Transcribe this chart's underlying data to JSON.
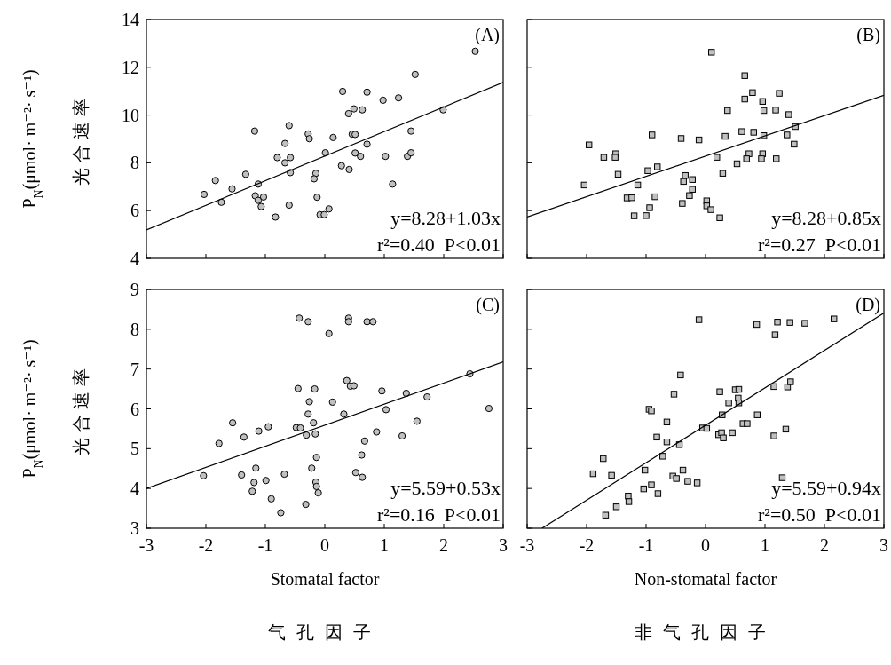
{
  "chart_data": [
    {
      "type": "scatter",
      "xlim": [
        -3,
        3
      ],
      "xticks": [
        -3,
        -2,
        -1,
        0,
        1,
        2,
        3
      ],
      "ylim": [
        4,
        14
      ],
      "yticks": [
        4,
        6,
        8,
        10,
        12,
        14
      ],
      "tick_labels": "y",
      "ylabel": "P$_{N}$(μmol· m⁻²· s⁻¹)\n光合速率",
      "annotations": [
        "(A)",
        "y=8.28+1.03x",
        "r²=0.40  P<0.01"
      ],
      "series": [
        {
          "type": "scatter",
          "marker": "circle",
          "color": "#c0c0c0",
          "x": [
            2.53,
            1.52,
            0.3,
            0.71,
            0.98,
            1.24,
            1.99,
            0.4,
            0.49,
            0.63,
            -1.18,
            -0.6,
            -0.28,
            -0.26,
            0.14,
            0.46,
            0.51,
            1.45,
            -0.67,
            0.71,
            0.01,
            -0.8,
            -0.67,
            -0.58,
            0.51,
            0.6,
            1.02,
            1.39,
            1.45,
            0.28,
            0.41,
            -0.58,
            -0.15,
            -0.18,
            -1.33,
            -1.84,
            -1.12,
            -1.56,
            -2.03,
            -1.74,
            -1.17,
            -1.03,
            -1.12,
            -1.07,
            -0.13,
            -0.6,
            1.14,
            -0.83,
            -0.08,
            -0.01,
            0.07
          ],
          "values": [
            12.67,
            11.7,
            10.99,
            10.96,
            10.62,
            10.72,
            10.22,
            10.06,
            10.26,
            10.22,
            9.33,
            9.56,
            9.21,
            9.01,
            9.06,
            9.2,
            9.19,
            9.33,
            8.81,
            8.78,
            8.42,
            8.22,
            8.0,
            8.22,
            8.41,
            8.27,
            8.27,
            8.27,
            8.42,
            7.88,
            7.72,
            7.59,
            7.56,
            7.33,
            7.52,
            7.26,
            7.11,
            6.91,
            6.68,
            6.35,
            6.62,
            6.57,
            6.43,
            6.17,
            6.56,
            6.23,
            7.11,
            5.73,
            5.83,
            5.83,
            6.07
          ]
        },
        {
          "type": "line",
          "color": "#000000",
          "x": [
            -3,
            3
          ],
          "values": [
            5.19,
            11.37
          ]
        }
      ]
    },
    {
      "type": "scatter",
      "xlim": [
        -3,
        3
      ],
      "xticks": [
        -3,
        -2,
        -1,
        0,
        1,
        2,
        3
      ],
      "ylim": [
        4,
        14
      ],
      "yticks": [
        4,
        6,
        8,
        10,
        12,
        14
      ],
      "tick_labels": false,
      "annotations": [
        "(B)",
        "y=8.28+0.85x",
        "r²=0.27  P<0.01"
      ],
      "series": [
        {
          "type": "scatter",
          "marker": "square",
          "color": "#c0c0c0",
          "x": [
            0.1,
            0.66,
            0.66,
            0.79,
            0.96,
            1.24,
            0.37,
            0.98,
            1.18,
            1.4,
            1.51,
            1.37,
            1.49,
            0.61,
            0.81,
            0.98,
            0.33,
            -0.9,
            -0.41,
            -0.11,
            -1.96,
            -1.71,
            -1.51,
            -1.52,
            0.19,
            0.73,
            0.69,
            0.96,
            0.94,
            1.19,
            0.53,
            -0.81,
            -0.97,
            0.29,
            -1.47,
            -0.34,
            -0.37,
            -0.22,
            -0.22,
            -0.27,
            -2.04,
            -1.14,
            -1.32,
            -1.24,
            -0.85,
            -0.39,
            0.02,
            0.02,
            0.09,
            0.24,
            -1.2,
            -1.0,
            -0.94
          ],
          "values": [
            12.63,
            11.65,
            10.67,
            10.94,
            10.57,
            10.91,
            10.19,
            10.19,
            10.21,
            10.02,
            9.52,
            9.17,
            8.78,
            9.31,
            9.28,
            9.14,
            9.11,
            9.17,
            9.02,
            8.96,
            8.75,
            8.23,
            8.38,
            8.23,
            8.23,
            8.38,
            8.17,
            8.38,
            8.17,
            8.17,
            7.96,
            7.83,
            7.67,
            7.56,
            7.52,
            7.47,
            7.22,
            7.3,
            6.89,
            6.63,
            7.07,
            7.07,
            6.53,
            6.54,
            6.58,
            6.3,
            6.41,
            6.2,
            6.04,
            5.7,
            5.78,
            5.79,
            6.12
          ]
        },
        {
          "type": "line",
          "color": "#000000",
          "x": [
            -3,
            3
          ],
          "values": [
            5.73,
            10.83
          ]
        }
      ]
    },
    {
      "type": "scatter",
      "xlim": [
        -3,
        3
      ],
      "xticks": [
        -3,
        -2,
        -1,
        0,
        1,
        2,
        3
      ],
      "ylim": [
        3,
        9
      ],
      "yticks": [
        3,
        4,
        5,
        6,
        7,
        8,
        9
      ],
      "ylabel": "P$_{N}$(μmol· m⁻²· s⁻¹)\n光合速率",
      "xlabel": "Stomatal factor\n气孔因子",
      "annotations": [
        "(C)",
        "y=5.59+0.53x",
        "r²=0.16  P<0.01"
      ],
      "series": [
        {
          "type": "scatter",
          "marker": "circle",
          "color": "#c0c0c0",
          "x": [
            -0.43,
            -0.28,
            0.4,
            0.4,
            0.71,
            0.81,
            0.07,
            2.44,
            2.76,
            0.37,
            0.43,
            0.49,
            -0.45,
            -0.17,
            0.96,
            1.37,
            1.72,
            -0.26,
            0.13,
            0.32,
            -0.28,
            1.03,
            -1.55,
            -0.19,
            1.55,
            -0.95,
            -0.48,
            -0.41,
            -1.11,
            -0.31,
            -0.16,
            -1.36,
            0.87,
            1.3,
            -1.78,
            0.67,
            -0.14,
            0.62,
            -2.04,
            -1.4,
            -1.16,
            -0.68,
            -0.22,
            -1.19,
            -0.99,
            -0.15,
            -0.14,
            -0.11,
            -1.22,
            -0.9,
            0.52,
            0.63,
            -0.32,
            -0.74
          ],
          "values": [
            8.28,
            8.19,
            8.28,
            8.19,
            8.19,
            8.19,
            7.89,
            6.88,
            6.01,
            6.71,
            6.57,
            6.58,
            6.51,
            6.5,
            6.45,
            6.39,
            6.3,
            6.18,
            6.17,
            5.87,
            5.87,
            5.98,
            5.65,
            5.65,
            5.69,
            5.55,
            5.53,
            5.52,
            5.44,
            5.34,
            5.37,
            5.29,
            5.42,
            5.32,
            5.13,
            5.19,
            4.78,
            4.84,
            4.32,
            4.34,
            4.51,
            4.36,
            4.51,
            4.15,
            4.2,
            4.16,
            4.05,
            3.89,
            3.93,
            3.74,
            4.4,
            4.28,
            3.6,
            3.39
          ]
        },
        {
          "type": "line",
          "color": "#000000",
          "x": [
            -3,
            3
          ],
          "values": [
            4.0,
            7.18
          ]
        }
      ]
    },
    {
      "type": "scatter",
      "xlim": [
        -3,
        3
      ],
      "xticks": [
        -3,
        -2,
        -1,
        0,
        1,
        2,
        3
      ],
      "ylim": [
        3,
        9
      ],
      "yticks": [
        3,
        4,
        5,
        6,
        7,
        8,
        9
      ],
      "tick_labels": "x",
      "xlabel": "Non-stomatal factor\n非气孔因子",
      "annotations": [
        "(D)",
        "y=5.59+0.94x",
        "r²=0.50  P<0.01"
      ],
      "series": [
        {
          "type": "scatter",
          "marker": "square",
          "color": "#c0c0c0",
          "x": [
            -0.11,
            0.86,
            1.21,
            1.42,
            1.67,
            2.16,
            1.17,
            -0.42,
            -0.53,
            0.24,
            0.5,
            0.56,
            0.55,
            0.56,
            0.39,
            1.15,
            1.38,
            1.43,
            -0.95,
            -0.91,
            0.28,
            0.87,
            -0.65,
            0.63,
            0.7,
            -0.05,
            0.02,
            0.22,
            0.27,
            0.3,
            0.45,
            1.15,
            1.35,
            -0.82,
            -0.65,
            -0.44,
            -0.72,
            -1.72,
            -1.89,
            -1.58,
            -1.02,
            -0.55,
            -0.49,
            -0.38,
            -0.3,
            -0.14,
            -1.04,
            -0.91,
            -0.8,
            -1.3,
            -1.29,
            -1.5,
            -1.68,
            1.29
          ],
          "values": [
            8.24,
            8.12,
            8.18,
            8.17,
            8.15,
            8.26,
            7.86,
            6.85,
            6.37,
            6.43,
            6.48,
            6.49,
            6.27,
            6.15,
            6.15,
            6.56,
            6.55,
            6.68,
            5.99,
            5.95,
            5.85,
            5.85,
            5.67,
            5.63,
            5.63,
            5.52,
            5.51,
            5.35,
            5.4,
            5.27,
            5.4,
            5.32,
            5.49,
            5.29,
            5.17,
            5.1,
            4.81,
            4.75,
            4.37,
            4.33,
            4.46,
            4.31,
            4.25,
            4.46,
            4.18,
            4.14,
            3.99,
            4.09,
            3.87,
            3.81,
            3.67,
            3.54,
            3.33,
            4.27
          ]
        },
        {
          "type": "line",
          "color": "#000000",
          "x": [
            -2.75,
            3
          ],
          "values": [
            3.0,
            8.41
          ]
        }
      ]
    }
  ]
}
